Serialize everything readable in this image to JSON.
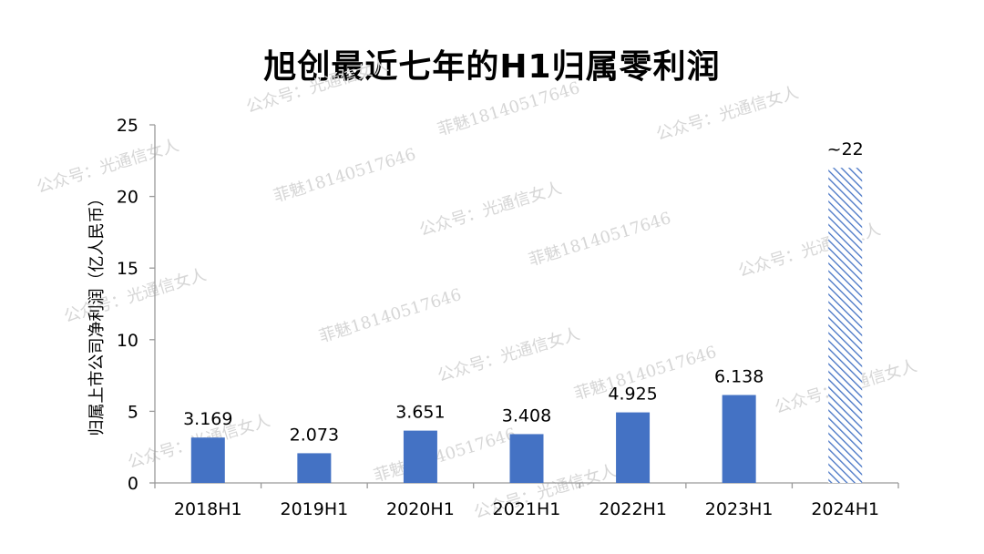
{
  "chart_data": {
    "type": "bar",
    "title": "旭创最近七年的H1归属零利润",
    "ylabel": "归属上市公司净利润（亿人民币）",
    "categories": [
      "2018H1",
      "2019H1",
      "2020H1",
      "2021H1",
      "2022H1",
      "2023H1",
      "2024H1"
    ],
    "values": [
      3.169,
      2.073,
      3.651,
      3.408,
      4.925,
      6.138,
      22
    ],
    "value_labels": [
      "3.169",
      "2.073",
      "3.651",
      "3.408",
      "4.925",
      "6.138",
      "~22"
    ],
    "estimated": [
      false,
      false,
      false,
      false,
      false,
      false,
      true
    ],
    "ylim": [
      0,
      25
    ],
    "yticks": [
      0,
      5,
      10,
      15,
      20,
      25
    ],
    "grid": false,
    "bar_color": "#4472c4"
  },
  "watermarks": [
    "公众号：光通信女人",
    "菲魅18140517646"
  ]
}
